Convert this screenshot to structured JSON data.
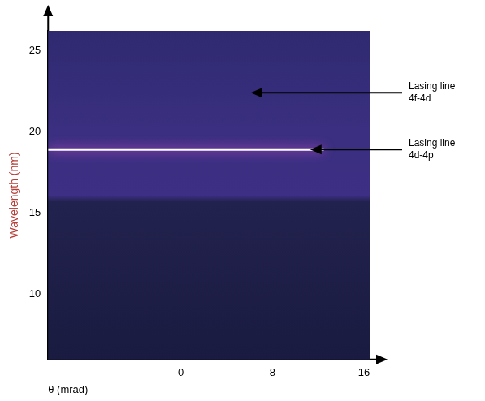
{
  "chart_data": {
    "type": "line",
    "x": [
      -11.6,
      12.5
    ],
    "values": [
      18.9,
      18.9
    ],
    "color": "#ffffff",
    "xlabel": "θ (mrad)",
    "ylabel": "Wavelength (nm)",
    "xlim": [
      -11.6,
      16.5
    ],
    "ylim": [
      6,
      26.2
    ],
    "xticks": [
      0,
      8,
      16
    ],
    "yticks": [
      10,
      15,
      20,
      25
    ],
    "grid": false,
    "annotations": [
      {
        "text": "Lasing line 4f-4d",
        "x": 6.1,
        "y": 22.4
      },
      {
        "text": "Lasing line 4d-4p",
        "x": 11.3,
        "y": 18.9
      }
    ]
  }
}
